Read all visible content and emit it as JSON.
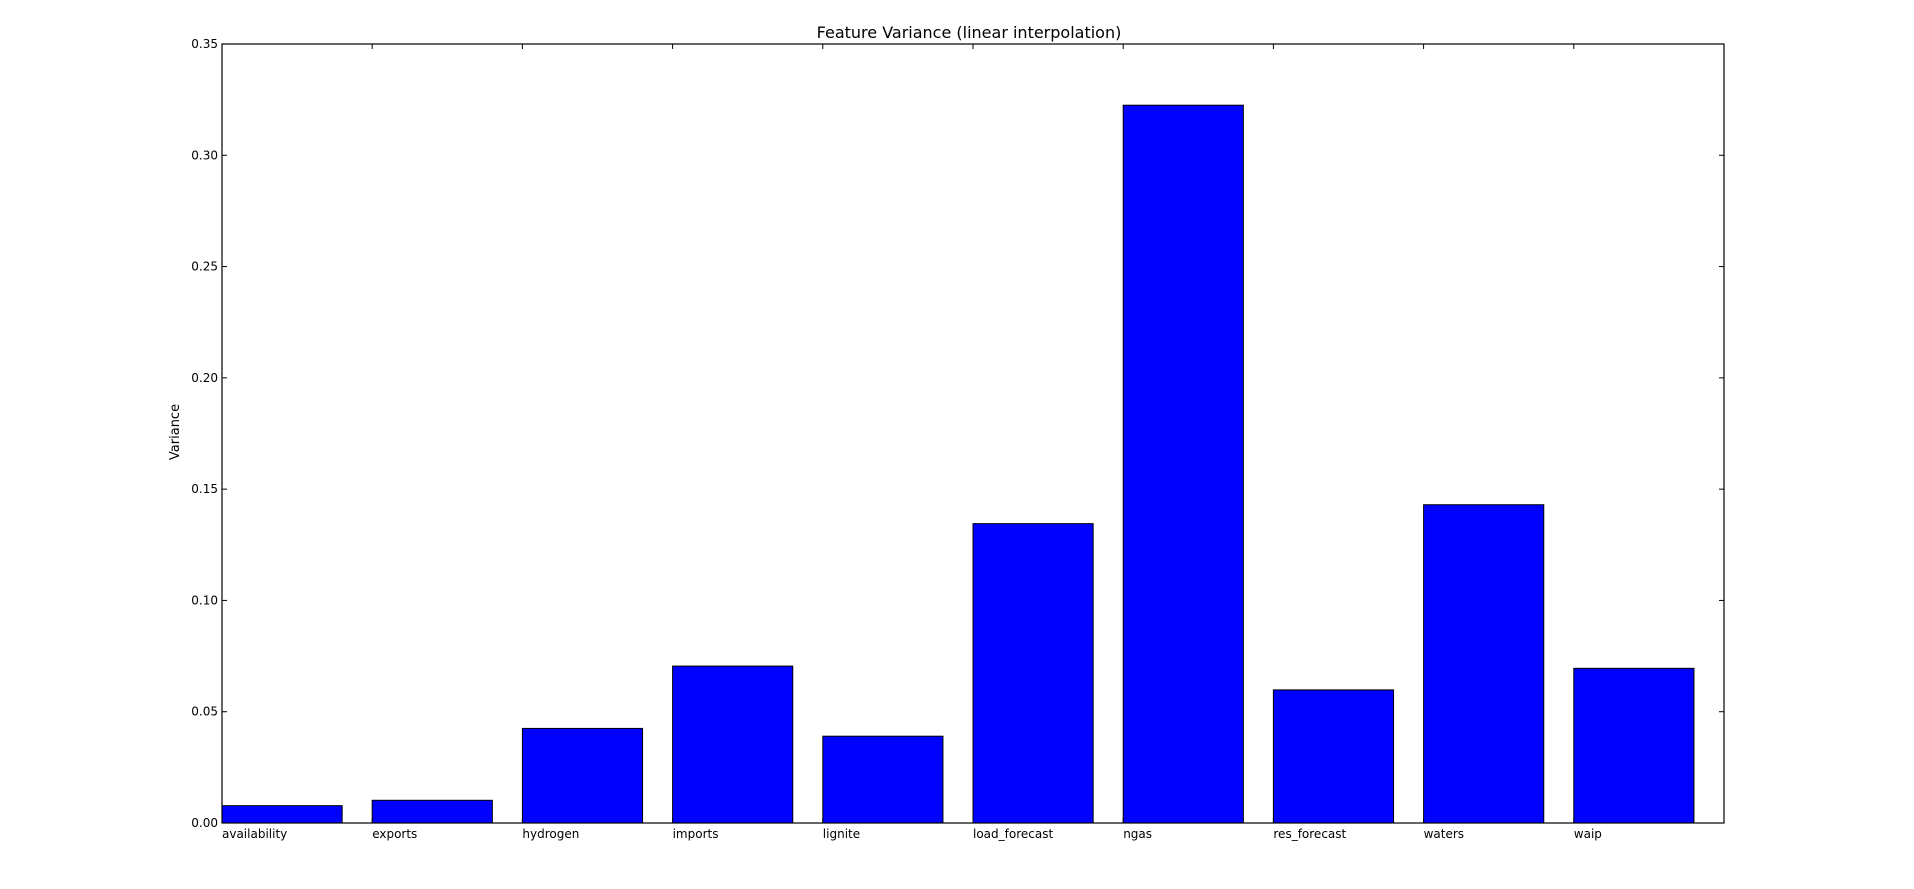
{
  "chart_data": {
    "type": "bar",
    "title": "Feature Variance (linear interpolation)",
    "xlabel": "",
    "ylabel": "Variance",
    "categories": [
      "availability",
      "exports",
      "hydrogen",
      "imports",
      "lignite",
      "load_forecast",
      "ngas",
      "res_forecast",
      "waters",
      "waip"
    ],
    "values": [
      0.0078,
      0.0102,
      0.0425,
      0.0705,
      0.039,
      0.1345,
      0.3225,
      0.0598,
      0.143,
      0.0695
    ],
    "ylim": [
      0,
      0.35
    ],
    "yticks": [
      0.0,
      0.05,
      0.1,
      0.15,
      0.2,
      0.25,
      0.3,
      0.35
    ],
    "ytick_labels": [
      "0.00",
      "0.05",
      "0.10",
      "0.15",
      "0.20",
      "0.25",
      "0.30",
      "0.35"
    ],
    "bar_color": "#0000ff",
    "grid": false,
    "legend": "none"
  }
}
